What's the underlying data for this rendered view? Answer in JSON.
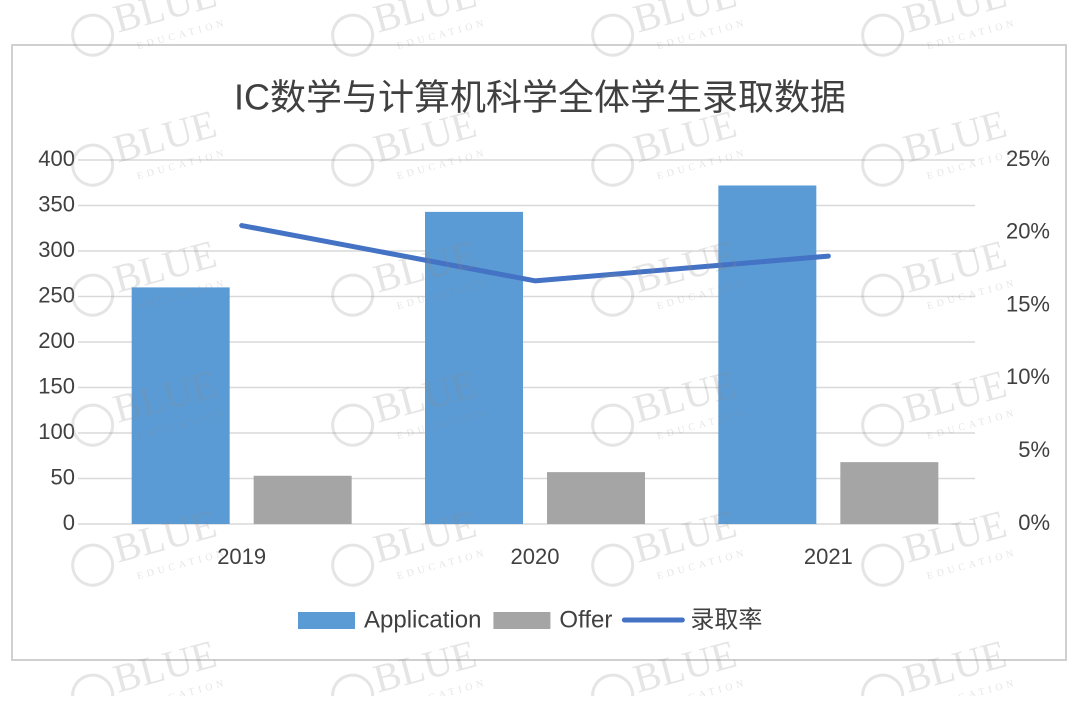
{
  "chart_data": {
    "type": "combo",
    "title": "IC数学与计算机科学全体学生录取数据",
    "categories": [
      "2019",
      "2020",
      "2021"
    ],
    "series": [
      {
        "name": "Application",
        "type": "bar",
        "color": "#5b9bd5",
        "values": [
          260,
          343,
          372
        ]
      },
      {
        "name": "Offer",
        "type": "bar",
        "color": "#a5a5a5",
        "values": [
          53,
          57,
          68
        ]
      },
      {
        "name": "录取率",
        "type": "line",
        "axis": "y2",
        "color": "#4472c4",
        "values": [
          20.5,
          16.7,
          18.4
        ]
      }
    ],
    "ylim": [
      0,
      400
    ],
    "yticks": [
      0,
      50,
      100,
      150,
      200,
      250,
      300,
      350,
      400
    ],
    "y2lim": [
      0,
      25
    ],
    "y2ticks": [
      {
        "value": 0,
        "label": "0%"
      },
      {
        "value": 5,
        "label": "5%"
      },
      {
        "value": 10,
        "label": "10%"
      },
      {
        "value": 15,
        "label": "15%"
      },
      {
        "value": 20,
        "label": "20%"
      },
      {
        "value": 25,
        "label": "25%"
      }
    ],
    "grid": true,
    "legend": "bottom"
  },
  "watermark": {
    "text": "BLUE",
    "subtext": "EDUCATION"
  }
}
